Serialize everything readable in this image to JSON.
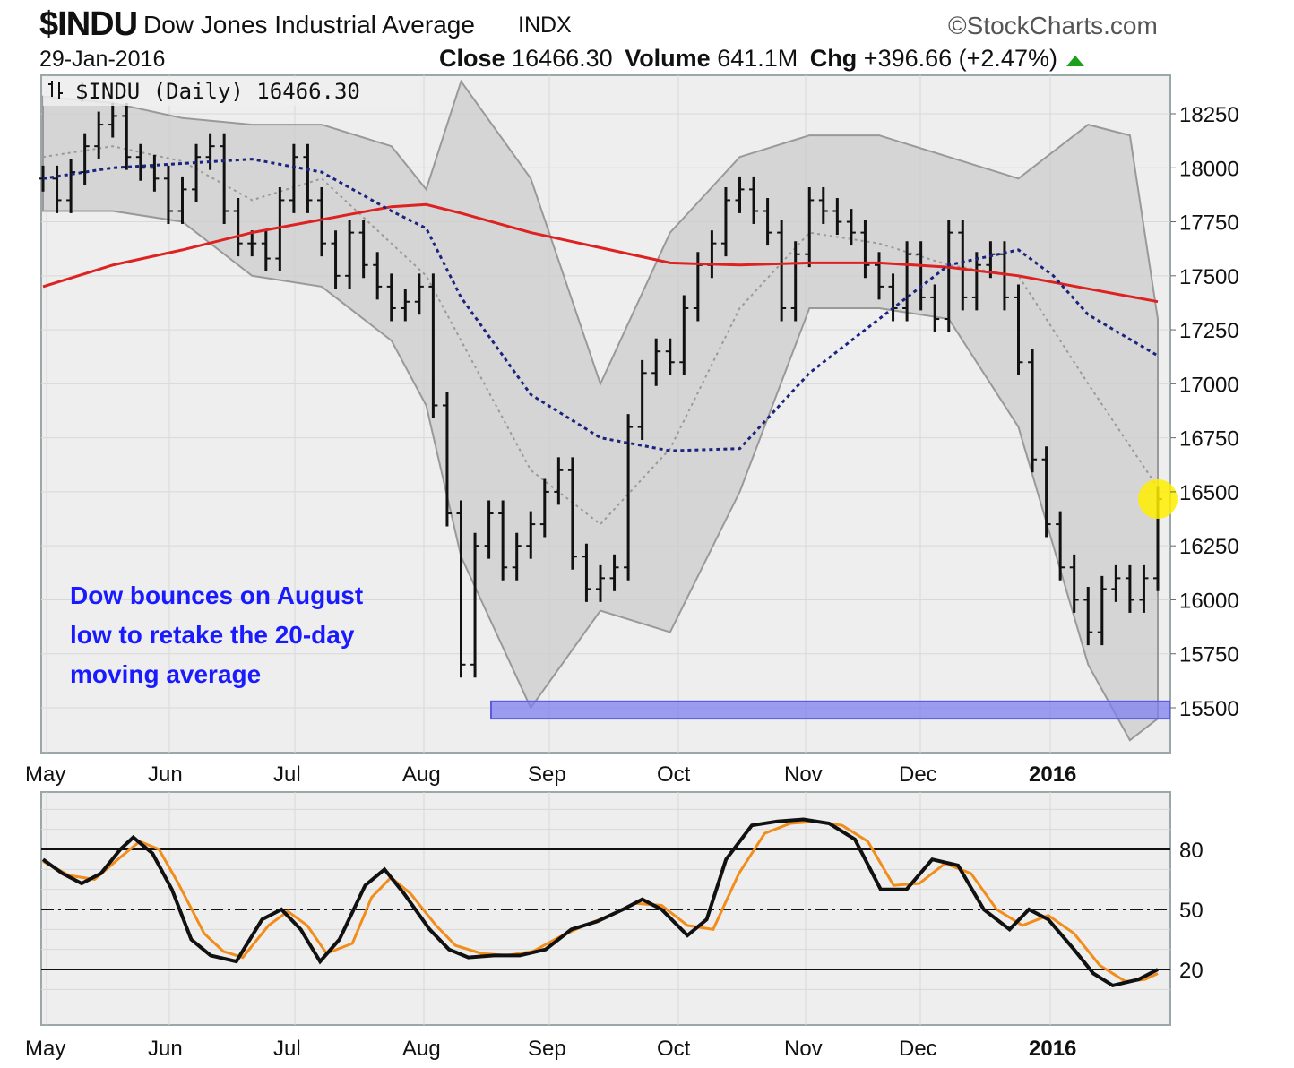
{
  "header": {
    "symbol": "$INDU",
    "name": "Dow Jones Industrial Average",
    "exchange": "INDX",
    "brand": "©StockCharts.com",
    "date": "29-Jan-2016",
    "close_label": "Close",
    "close_value": "16466.30",
    "volume_label": "Volume",
    "volume_value": "641.1M",
    "chg_label": "Chg",
    "chg_value": "+396.66 (+2.47%)"
  },
  "legend": {
    "icon": "candlestick-toggle-icon",
    "text": "$INDU (Daily) 16466.30"
  },
  "annotation": {
    "lines": [
      "Dow bounces on August",
      "low to retake the 20-day",
      "moving average"
    ]
  },
  "colors": {
    "price_bars": "#111111",
    "sma200": "#dd2222",
    "sma50": "#1a237e",
    "sma20": "#9a9a9a",
    "bollinger_fill": "#cccccc",
    "support_band": "#7f7ff0",
    "highlight": "#ffee00",
    "stoch_k": "#111111",
    "stoch_d": "#f28c1a"
  },
  "chart_data": [
    {
      "type": "ohlc",
      "title": "$INDU (Daily) 16466.30",
      "x_tick_labels": [
        "May",
        "Jun",
        "Jul",
        "Aug",
        "Sep",
        "Oct",
        "Nov",
        "Dec",
        "2016"
      ],
      "y_tick_labels": [
        "18250",
        "18000",
        "17750",
        "17500",
        "17250",
        "17000",
        "16750",
        "16500",
        "16250",
        "16000",
        "15750",
        "15500"
      ],
      "ylim": [
        15330,
        18400
      ],
      "x_range_months": [
        0,
        9
      ],
      "grid": true,
      "support_band": [
        15450,
        15530
      ],
      "last_close": 16466.3,
      "closes": [
        [
          0.0,
          17950
        ],
        [
          0.2,
          17850
        ],
        [
          0.4,
          17980
        ],
        [
          0.6,
          18100
        ],
        [
          0.8,
          18200
        ],
        [
          1.0,
          18240
        ],
        [
          1.2,
          18050
        ],
        [
          1.4,
          18000
        ],
        [
          1.6,
          17950
        ],
        [
          1.8,
          17800
        ],
        [
          2.0,
          17900
        ],
        [
          2.2,
          18050
        ],
        [
          2.4,
          18100
        ],
        [
          2.6,
          17800
        ],
        [
          2.8,
          17650
        ],
        [
          3.0,
          17650
        ],
        [
          3.2,
          17580
        ],
        [
          3.4,
          17850
        ],
        [
          3.6,
          18050
        ],
        [
          3.8,
          17850
        ],
        [
          4.0,
          17650
        ],
        [
          4.2,
          17500
        ],
        [
          4.4,
          17700
        ],
        [
          4.6,
          17550
        ],
        [
          4.8,
          17450
        ],
        [
          5.0,
          17350
        ],
        [
          5.2,
          17380
        ],
        [
          5.4,
          17450
        ],
        [
          5.6,
          16900
        ],
        [
          5.8,
          16400
        ],
        [
          6.0,
          15700
        ],
        [
          6.2,
          16250
        ],
        [
          6.4,
          16400
        ],
        [
          6.6,
          16150
        ],
        [
          6.8,
          16250
        ],
        [
          7.0,
          16350
        ],
        [
          7.2,
          16500
        ],
        [
          7.4,
          16600
        ],
        [
          7.6,
          16200
        ],
        [
          7.8,
          16050
        ],
        [
          8.0,
          16100
        ],
        [
          8.2,
          16150
        ],
        [
          8.4,
          16800
        ],
        [
          8.6,
          17050
        ],
        [
          8.8,
          17150
        ],
        [
          9.0,
          17100
        ],
        [
          9.2,
          17350
        ],
        [
          9.4,
          17550
        ],
        [
          9.6,
          17650
        ],
        [
          9.8,
          17850
        ],
        [
          10.0,
          17900
        ],
        [
          10.2,
          17800
        ],
        [
          10.4,
          17700
        ],
        [
          10.6,
          17350
        ],
        [
          10.8,
          17600
        ],
        [
          11.0,
          17850
        ],
        [
          11.2,
          17800
        ],
        [
          11.4,
          17750
        ],
        [
          11.6,
          17700
        ],
        [
          11.8,
          17550
        ],
        [
          12.0,
          17450
        ],
        [
          12.2,
          17350
        ],
        [
          12.4,
          17600
        ],
        [
          12.6,
          17400
        ],
        [
          12.8,
          17300
        ],
        [
          13.0,
          17700
        ],
        [
          13.2,
          17400
        ],
        [
          13.4,
          17550
        ],
        [
          13.6,
          17600
        ],
        [
          13.8,
          17400
        ],
        [
          14.0,
          17100
        ],
        [
          14.2,
          16650
        ],
        [
          14.4,
          16350
        ],
        [
          14.6,
          16150
        ],
        [
          14.8,
          16000
        ],
        [
          15.0,
          15850
        ],
        [
          15.2,
          16050
        ],
        [
          15.4,
          16100
        ],
        [
          15.6,
          16000
        ],
        [
          15.8,
          16100
        ],
        [
          16.0,
          16466
        ]
      ],
      "sma200": [
        [
          0.0,
          17450
        ],
        [
          1.0,
          17550
        ],
        [
          2.0,
          17620
        ],
        [
          3.0,
          17700
        ],
        [
          4.0,
          17760
        ],
        [
          5.0,
          17820
        ],
        [
          5.5,
          17830
        ],
        [
          6.0,
          17790
        ],
        [
          7.0,
          17700
        ],
        [
          8.0,
          17630
        ],
        [
          9.0,
          17560
        ],
        [
          10.0,
          17550
        ],
        [
          11.0,
          17560
        ],
        [
          12.0,
          17560
        ],
        [
          13.0,
          17540
        ],
        [
          14.0,
          17500
        ],
        [
          15.0,
          17440
        ],
        [
          16.0,
          17380
        ]
      ],
      "sma50": [
        [
          0.0,
          17950
        ],
        [
          1.0,
          18000
        ],
        [
          2.0,
          18020
        ],
        [
          3.0,
          18040
        ],
        [
          4.0,
          17980
        ],
        [
          5.0,
          17800
        ],
        [
          5.5,
          17720
        ],
        [
          6.0,
          17400
        ],
        [
          7.0,
          16950
        ],
        [
          8.0,
          16750
        ],
        [
          9.0,
          16690
        ],
        [
          10.0,
          16700
        ],
        [
          11.0,
          17050
        ],
        [
          12.0,
          17300
        ],
        [
          13.0,
          17550
        ],
        [
          14.0,
          17620
        ],
        [
          14.5,
          17500
        ],
        [
          15.0,
          17320
        ],
        [
          16.0,
          17130
        ]
      ],
      "sma20": [
        [
          0.0,
          18050
        ],
        [
          1.0,
          18100
        ],
        [
          2.0,
          18030
        ],
        [
          3.0,
          17850
        ],
        [
          4.0,
          17950
        ],
        [
          5.0,
          17650
        ],
        [
          5.5,
          17500
        ],
        [
          6.0,
          17200
        ],
        [
          7.0,
          16600
        ],
        [
          8.0,
          16350
        ],
        [
          9.0,
          16700
        ],
        [
          10.0,
          17350
        ],
        [
          11.0,
          17700
        ],
        [
          12.0,
          17650
        ],
        [
          13.0,
          17550
        ],
        [
          14.0,
          17500
        ],
        [
          15.0,
          17000
        ],
        [
          16.0,
          16520
        ]
      ],
      "bollinger_upper": [
        [
          0.0,
          18330
        ],
        [
          1.0,
          18300
        ],
        [
          2.0,
          18230
        ],
        [
          3.0,
          18200
        ],
        [
          4.0,
          18200
        ],
        [
          5.0,
          18100
        ],
        [
          5.5,
          17900
        ],
        [
          6.0,
          18400
        ],
        [
          7.0,
          17950
        ],
        [
          8.0,
          17000
        ],
        [
          9.0,
          17700
        ],
        [
          10.0,
          18050
        ],
        [
          11.0,
          18150
        ],
        [
          12.0,
          18150
        ],
        [
          13.0,
          18050
        ],
        [
          14.0,
          17950
        ],
        [
          15.0,
          18200
        ],
        [
          15.6,
          18150
        ],
        [
          16.0,
          17300
        ]
      ],
      "bollinger_lower": [
        [
          0.0,
          17800
        ],
        [
          1.0,
          17800
        ],
        [
          2.0,
          17750
        ],
        [
          3.0,
          17500
        ],
        [
          4.0,
          17450
        ],
        [
          5.0,
          17200
        ],
        [
          5.5,
          16900
        ],
        [
          6.0,
          16200
        ],
        [
          7.0,
          15500
        ],
        [
          8.0,
          15950
        ],
        [
          9.0,
          15850
        ],
        [
          10.0,
          16500
        ],
        [
          11.0,
          17350
        ],
        [
          12.0,
          17350
        ],
        [
          13.0,
          17300
        ],
        [
          14.0,
          16800
        ],
        [
          15.0,
          15700
        ],
        [
          15.6,
          15350
        ],
        [
          16.0,
          15450
        ]
      ]
    },
    {
      "type": "line",
      "x_tick_labels": [
        "May",
        "Jun",
        "Jul",
        "Aug",
        "Sep",
        "Oct",
        "Nov",
        "Dec",
        "2016"
      ],
      "y_tick_labels": [
        "80",
        "50",
        "20"
      ],
      "ylim": [
        0,
        100
      ],
      "reference_lines": [
        80,
        50,
        20
      ],
      "series": [
        {
          "values": [
            [
              0.0,
              75
            ],
            [
              0.3,
              68
            ],
            [
              0.6,
              63
            ],
            [
              0.9,
              68
            ],
            [
              1.2,
              80
            ],
            [
              1.4,
              86
            ],
            [
              1.7,
              78
            ],
            [
              2.0,
              60
            ],
            [
              2.3,
              35
            ],
            [
              2.6,
              27
            ],
            [
              3.0,
              24
            ],
            [
              3.4,
              45
            ],
            [
              3.7,
              50
            ],
            [
              4.0,
              40
            ],
            [
              4.3,
              24
            ],
            [
              4.6,
              35
            ],
            [
              5.0,
              62
            ],
            [
              5.3,
              70
            ],
            [
              5.6,
              58
            ],
            [
              6.0,
              40
            ],
            [
              6.3,
              30
            ],
            [
              6.6,
              26
            ],
            [
              7.0,
              27
            ],
            [
              7.4,
              27
            ],
            [
              7.8,
              30
            ],
            [
              8.2,
              40
            ],
            [
              8.6,
              44
            ],
            [
              9.0,
              50
            ],
            [
              9.3,
              55
            ],
            [
              9.6,
              50
            ],
            [
              10.0,
              37
            ],
            [
              10.3,
              45
            ],
            [
              10.6,
              75
            ],
            [
              11.0,
              92
            ],
            [
              11.4,
              94
            ],
            [
              11.8,
              95
            ],
            [
              12.2,
              93
            ],
            [
              12.6,
              85
            ],
            [
              13.0,
              60
            ],
            [
              13.4,
              60
            ],
            [
              13.8,
              75
            ],
            [
              14.2,
              72
            ],
            [
              14.6,
              50
            ],
            [
              15.0,
              40
            ],
            [
              15.3,
              50
            ],
            [
              15.6,
              45
            ],
            [
              16.0,
              30
            ],
            [
              16.3,
              18
            ],
            [
              16.6,
              12
            ],
            [
              17.0,
              15
            ],
            [
              17.3,
              20
            ]
          ]
        },
        {
          "values": [
            [
              0.0,
              74
            ],
            [
              0.4,
              67
            ],
            [
              0.8,
              65
            ],
            [
              1.2,
              76
            ],
            [
              1.5,
              84
            ],
            [
              1.8,
              80
            ],
            [
              2.1,
              63
            ],
            [
              2.5,
              38
            ],
            [
              2.8,
              29
            ],
            [
              3.1,
              26
            ],
            [
              3.5,
              42
            ],
            [
              3.8,
              49
            ],
            [
              4.1,
              42
            ],
            [
              4.4,
              28
            ],
            [
              4.8,
              33
            ],
            [
              5.1,
              56
            ],
            [
              5.4,
              66
            ],
            [
              5.7,
              58
            ],
            [
              6.1,
              42
            ],
            [
              6.4,
              32
            ],
            [
              6.8,
              28
            ],
            [
              7.2,
              27
            ],
            [
              7.6,
              29
            ],
            [
              8.0,
              36
            ],
            [
              8.4,
              42
            ],
            [
              8.8,
              47
            ],
            [
              9.2,
              53
            ],
            [
              9.6,
              52
            ],
            [
              10.0,
              42
            ],
            [
              10.4,
              40
            ],
            [
              10.8,
              68
            ],
            [
              11.2,
              88
            ],
            [
              11.6,
              93
            ],
            [
              12.0,
              94
            ],
            [
              12.4,
              92
            ],
            [
              12.8,
              84
            ],
            [
              13.2,
              62
            ],
            [
              13.6,
              63
            ],
            [
              14.0,
              73
            ],
            [
              14.4,
              68
            ],
            [
              14.8,
              50
            ],
            [
              15.2,
              42
            ],
            [
              15.6,
              47
            ],
            [
              16.0,
              38
            ],
            [
              16.4,
              22
            ],
            [
              16.8,
              14
            ],
            [
              17.1,
              15
            ],
            [
              17.3,
              18
            ]
          ]
        }
      ]
    }
  ]
}
